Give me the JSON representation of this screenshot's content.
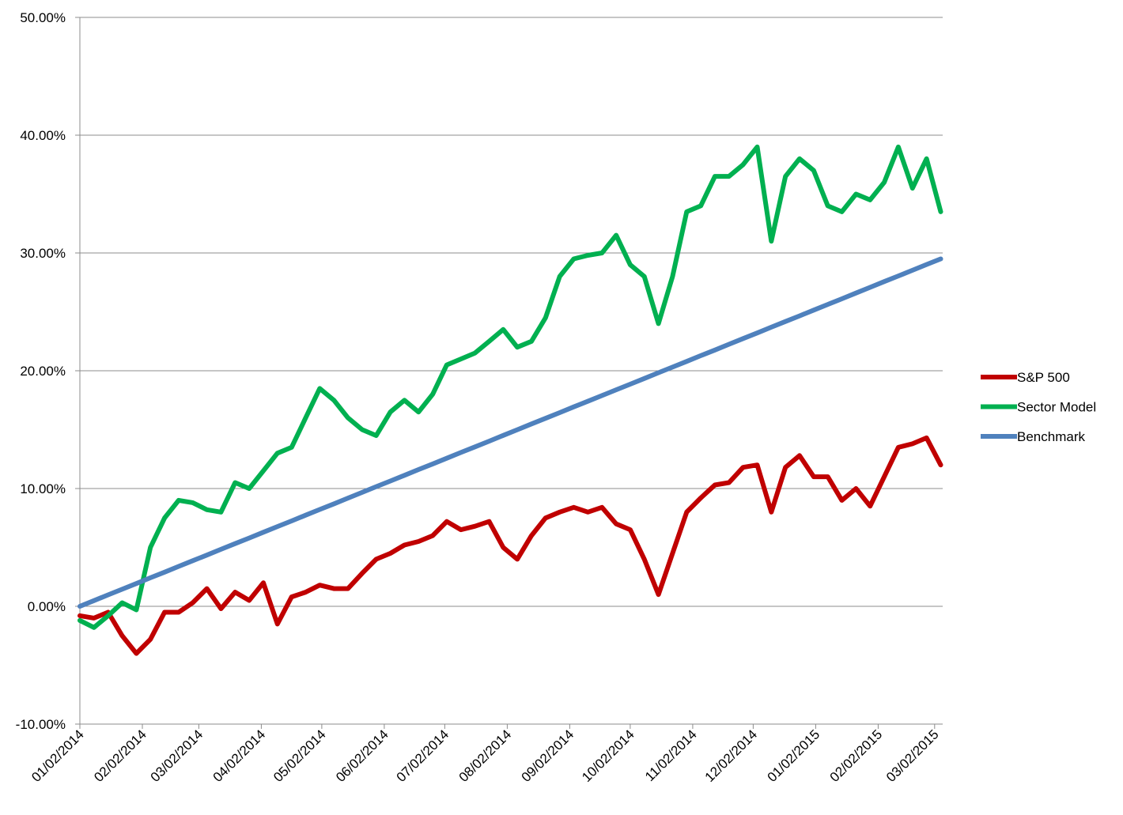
{
  "chart_data": {
    "type": "line",
    "x": [
      "01/02/2014",
      "01/09/2014",
      "01/16/2014",
      "01/23/2014",
      "01/30/2014",
      "02/06/2014",
      "02/13/2014",
      "02/20/2014",
      "02/27/2014",
      "03/06/2014",
      "03/13/2014",
      "03/20/2014",
      "03/27/2014",
      "04/03/2014",
      "04/10/2014",
      "04/17/2014",
      "04/24/2014",
      "05/01/2014",
      "05/08/2014",
      "05/15/2014",
      "05/22/2014",
      "05/29/2014",
      "06/05/2014",
      "06/12/2014",
      "06/19/2014",
      "06/26/2014",
      "07/03/2014",
      "07/10/2014",
      "07/17/2014",
      "07/24/2014",
      "07/31/2014",
      "08/07/2014",
      "08/14/2014",
      "08/21/2014",
      "08/28/2014",
      "09/04/2014",
      "09/11/2014",
      "09/18/2014",
      "09/25/2014",
      "10/02/2014",
      "10/09/2014",
      "10/16/2014",
      "10/23/2014",
      "10/30/2014",
      "11/06/2014",
      "11/13/2014",
      "11/20/2014",
      "11/27/2014",
      "12/04/2014",
      "12/11/2014",
      "12/18/2014",
      "12/25/2014",
      "01/01/2015",
      "01/08/2015",
      "01/15/2015",
      "01/22/2015",
      "01/29/2015",
      "02/05/2015",
      "02/12/2015",
      "02/19/2015",
      "02/26/2015",
      "03/05/2015"
    ],
    "series": [
      {
        "name": "S&P 500",
        "color": "#c00000",
        "values": [
          -0.8,
          -1.0,
          -0.5,
          -2.5,
          -4.0,
          -2.8,
          -0.5,
          -0.5,
          0.3,
          1.5,
          -0.2,
          1.2,
          0.5,
          2.0,
          -1.5,
          0.8,
          1.2,
          1.8,
          1.5,
          1.5,
          2.8,
          4.0,
          4.5,
          5.2,
          5.5,
          6.0,
          7.2,
          6.5,
          6.8,
          7.2,
          5.0,
          4.0,
          6.0,
          7.5,
          8.0,
          8.4,
          8.0,
          8.4,
          7.0,
          6.5,
          4.0,
          1.0,
          4.5,
          8.0,
          9.2,
          10.3,
          10.5,
          11.8,
          12.0,
          8.0,
          11.8,
          12.8,
          11.0,
          11.0,
          9.0,
          10.0,
          8.5,
          11.0,
          13.5,
          13.8,
          14.3,
          12.0
        ]
      },
      {
        "name": "Sector Model",
        "color": "#00b050",
        "values": [
          -1.2,
          -1.8,
          -0.8,
          0.3,
          -0.3,
          5.0,
          7.5,
          9.0,
          8.8,
          8.2,
          8.0,
          10.5,
          10.0,
          11.5,
          13.0,
          13.5,
          16.0,
          18.5,
          17.5,
          16.0,
          15.0,
          14.5,
          16.5,
          17.5,
          16.5,
          18.0,
          20.5,
          21.0,
          21.5,
          22.5,
          23.5,
          22.0,
          22.5,
          24.5,
          28.0,
          29.5,
          29.8,
          30.0,
          31.5,
          29.0,
          28.0,
          24.0,
          28.0,
          33.5,
          34.0,
          36.5,
          36.5,
          37.5,
          39.0,
          31.0,
          36.5,
          38.0,
          37.0,
          34.0,
          33.5,
          35.0,
          34.5,
          36.0,
          39.0,
          35.5,
          38.0,
          33.5
        ]
      },
      {
        "name": "Benchmark",
        "color": "#4f81bd",
        "values": [
          0,
          0.48,
          0.97,
          1.45,
          1.93,
          2.42,
          2.9,
          3.39,
          3.87,
          4.35,
          4.84,
          5.32,
          5.8,
          6.29,
          6.77,
          7.25,
          7.74,
          8.22,
          8.7,
          9.19,
          9.67,
          10.16,
          10.64,
          11.12,
          11.61,
          12.09,
          12.57,
          13.06,
          13.54,
          14.02,
          14.51,
          14.99,
          15.48,
          15.96,
          16.44,
          16.93,
          17.41,
          17.89,
          18.38,
          18.86,
          19.34,
          19.83,
          20.31,
          20.79,
          21.28,
          21.76,
          22.25,
          22.73,
          23.21,
          23.7,
          24.18,
          24.66,
          25.15,
          25.63,
          26.11,
          26.6,
          27.08,
          27.57,
          28.05,
          28.53,
          29.02,
          29.5
        ]
      }
    ],
    "xlim": [
      "01/02/2014",
      "03/06/2015"
    ],
    "xticks": [
      "01/02/2014",
      "02/02/2014",
      "03/02/2014",
      "04/02/2014",
      "05/02/2014",
      "06/02/2014",
      "07/02/2014",
      "08/02/2014",
      "09/02/2014",
      "10/02/2014",
      "11/02/2014",
      "12/02/2014",
      "01/02/2015",
      "02/02/2015",
      "03/02/2015"
    ],
    "ylim": [
      -10,
      50
    ],
    "yticks": [
      {
        "value": -10,
        "label": "-10.00%"
      },
      {
        "value": 0,
        "label": "0.00%"
      },
      {
        "value": 10,
        "label": "10.00%"
      },
      {
        "value": 20,
        "label": "20.00%"
      },
      {
        "value": 30,
        "label": "30.00%"
      },
      {
        "value": 40,
        "label": "40.00%"
      },
      {
        "value": 50,
        "label": "50.00%"
      }
    ],
    "grid": true,
    "legend": "right"
  }
}
